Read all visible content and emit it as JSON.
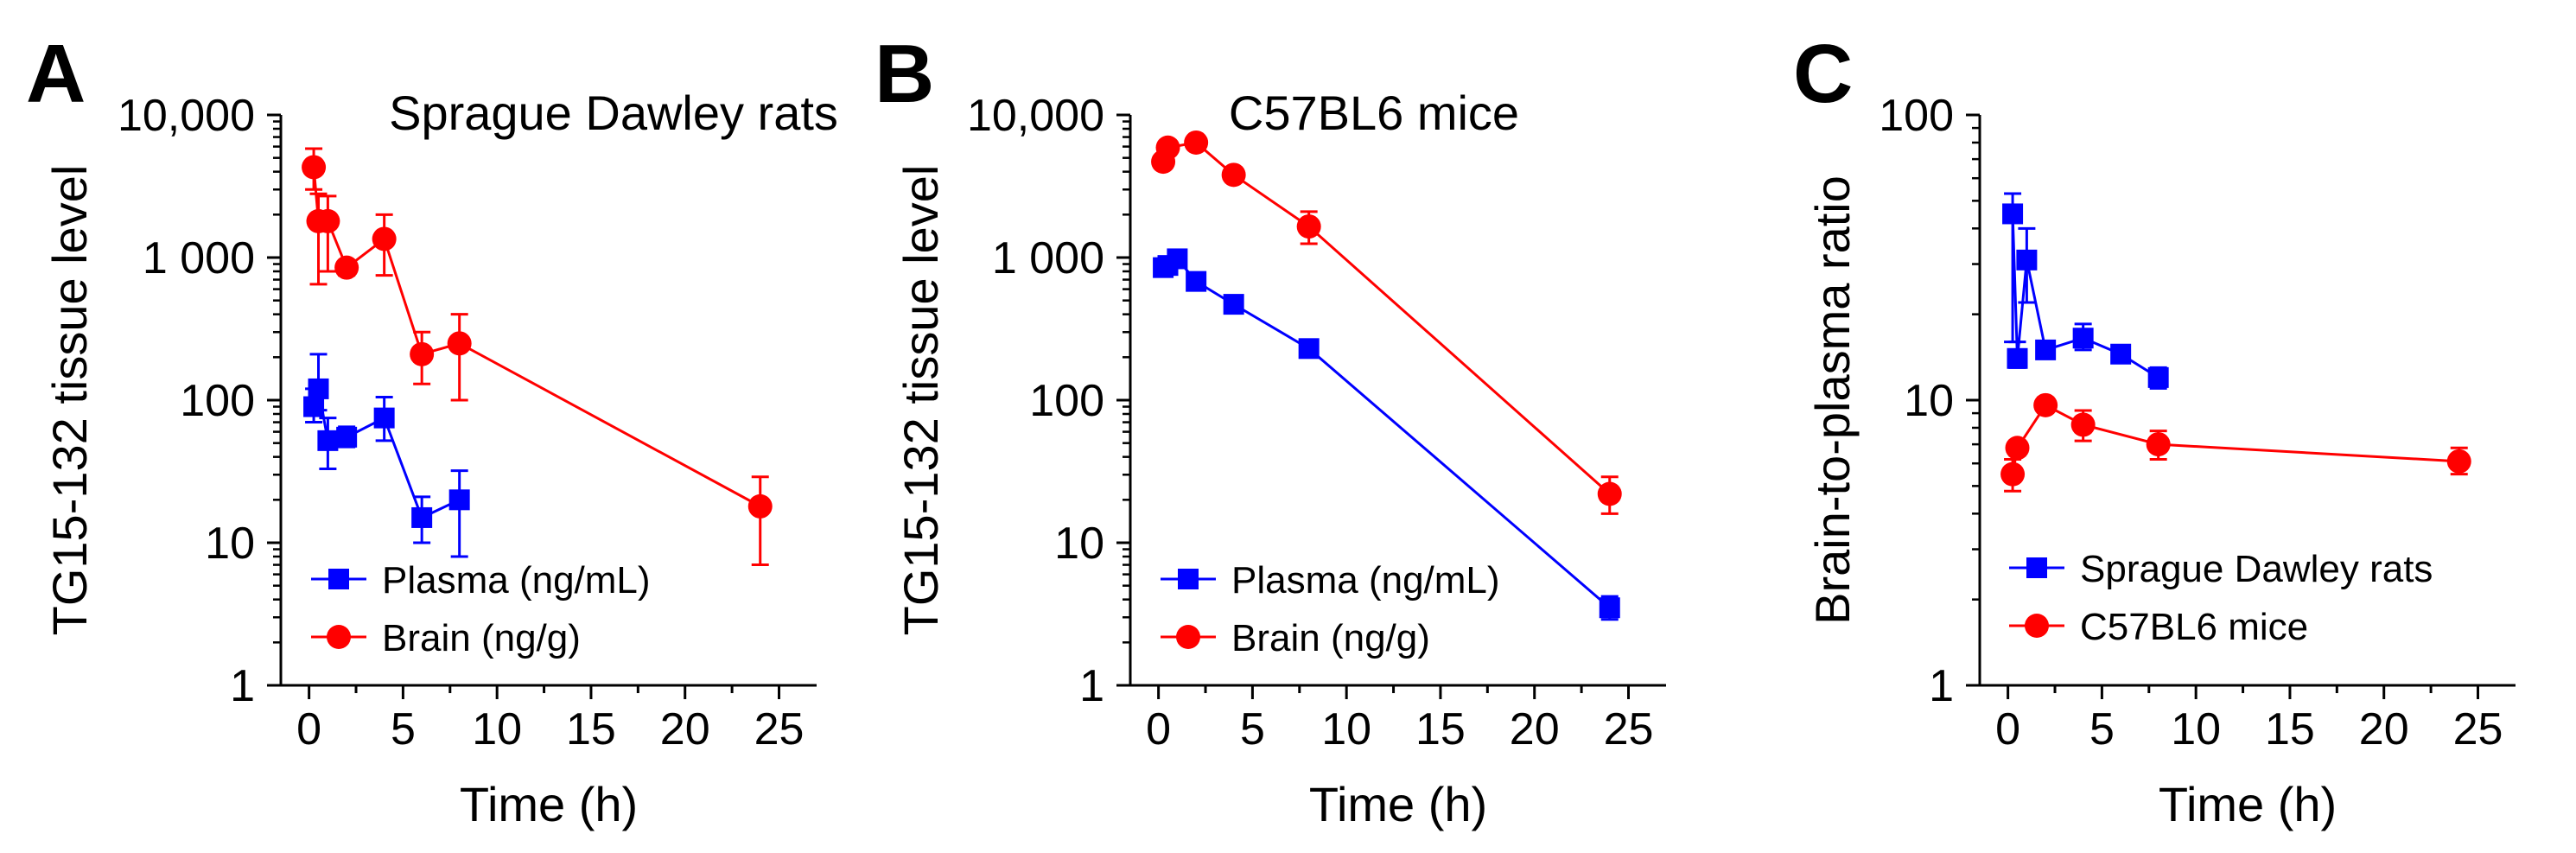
{
  "chart_data": [
    {
      "type": "line",
      "panel_label": "A",
      "title": "Sprague Dawley rats",
      "xlabel": "Time (h)",
      "ylabel": "TG15-132 tissue level",
      "yscale": "log",
      "xlim": [
        -1.5,
        27
      ],
      "ylim": [
        1,
        10000
      ],
      "xticks": [
        0,
        5,
        10,
        15,
        20,
        25
      ],
      "yticks": [
        1,
        10,
        100,
        1000,
        10000
      ],
      "ytick_labels": [
        "1",
        "10",
        "100",
        "1 000",
        "10,000"
      ],
      "legend_position": "lower-left",
      "series": [
        {
          "name": "Plasma (ng/mL)",
          "color": "#0000ff",
          "marker": "square",
          "x": [
            0.25,
            0.5,
            1,
            2,
            4,
            6,
            8
          ],
          "y": [
            90,
            120,
            52,
            55,
            75,
            15,
            20
          ],
          "err_up": [
            120,
            210,
            75,
            65,
            105,
            21,
            32
          ],
          "err_down": [
            70,
            85,
            33,
            47,
            52,
            10,
            8
          ]
        },
        {
          "name": "Brain (ng/g)",
          "color": "#ff0000",
          "marker": "circle",
          "x": [
            0.25,
            0.5,
            1,
            2,
            4,
            6,
            8,
            24
          ],
          "y": [
            4300,
            1800,
            1800,
            850,
            1350,
            210,
            250,
            18
          ],
          "err_up": [
            5800,
            2800,
            2700,
            950,
            2000,
            300,
            400,
            29
          ],
          "err_down": [
            3000,
            650,
            800,
            750,
            750,
            130,
            100,
            7
          ]
        }
      ]
    },
    {
      "type": "line",
      "panel_label": "B",
      "title": "C57BL6 mice",
      "xlabel": "Time (h)",
      "ylabel": "TG15-132 tissue level",
      "yscale": "log",
      "xlim": [
        -1.5,
        27
      ],
      "ylim": [
        1,
        10000
      ],
      "xticks": [
        0,
        5,
        10,
        15,
        20,
        25
      ],
      "yticks": [
        1,
        10,
        100,
        1000,
        10000
      ],
      "ytick_labels": [
        "1",
        "10",
        "100",
        "1 000",
        "10,000"
      ],
      "legend_position": "lower-left",
      "series": [
        {
          "name": "Plasma (ng/mL)",
          "color": "#0000ff",
          "marker": "square",
          "x": [
            0.25,
            0.5,
            1,
            2,
            4,
            8,
            24
          ],
          "y": [
            850,
            880,
            980,
            680,
            470,
            230,
            3.5
          ],
          "err_up": [
            950,
            950,
            1050,
            740,
            520,
            250,
            4.2
          ],
          "err_down": [
            770,
            810,
            910,
            620,
            420,
            210,
            2.9
          ]
        },
        {
          "name": "Brain (ng/g)",
          "color": "#ff0000",
          "marker": "circle",
          "x": [
            0.25,
            0.5,
            2,
            4,
            8,
            24
          ],
          "y": [
            4700,
            5900,
            6400,
            3800,
            1650,
            22
          ],
          "err_up": [
            5200,
            6500,
            7000,
            4200,
            2100,
            29
          ],
          "err_down": [
            4200,
            5300,
            5800,
            3400,
            1250,
            16
          ]
        }
      ]
    },
    {
      "type": "line",
      "panel_label": "C",
      "title": "",
      "xlabel": "Time (h)",
      "ylabel": "Brain-to-plasma ratio",
      "yscale": "log",
      "xlim": [
        -1.5,
        27
      ],
      "ylim": [
        1,
        100
      ],
      "xticks": [
        0,
        5,
        10,
        15,
        20,
        25
      ],
      "yticks": [
        1,
        10,
        100
      ],
      "ytick_labels": [
        "1",
        "10",
        "100"
      ],
      "legend_position": "lower-left",
      "series": [
        {
          "name": "Sprague Dawley rats",
          "color": "#0000ff",
          "marker": "square",
          "x": [
            0.25,
            0.5,
            1,
            2,
            4,
            6,
            8
          ],
          "y": [
            45,
            14,
            31,
            15,
            16.5,
            14.5,
            12
          ],
          "err_up": [
            53,
            16,
            40,
            16,
            18.5,
            15.5,
            13
          ],
          "err_down": [
            16,
            13,
            22,
            14,
            15,
            13.5,
            11
          ]
        },
        {
          "name": "C57BL6 mice",
          "color": "#ff0000",
          "marker": "circle",
          "x": [
            0.25,
            0.5,
            2,
            4,
            8,
            24
          ],
          "y": [
            5.5,
            6.8,
            9.6,
            8.2,
            7,
            6.1
          ],
          "err_up": [
            6.2,
            7.2,
            10.2,
            9.2,
            7.8,
            6.8
          ],
          "err_down": [
            4.8,
            6.4,
            9.1,
            7.2,
            6.2,
            5.5
          ]
        }
      ]
    }
  ]
}
